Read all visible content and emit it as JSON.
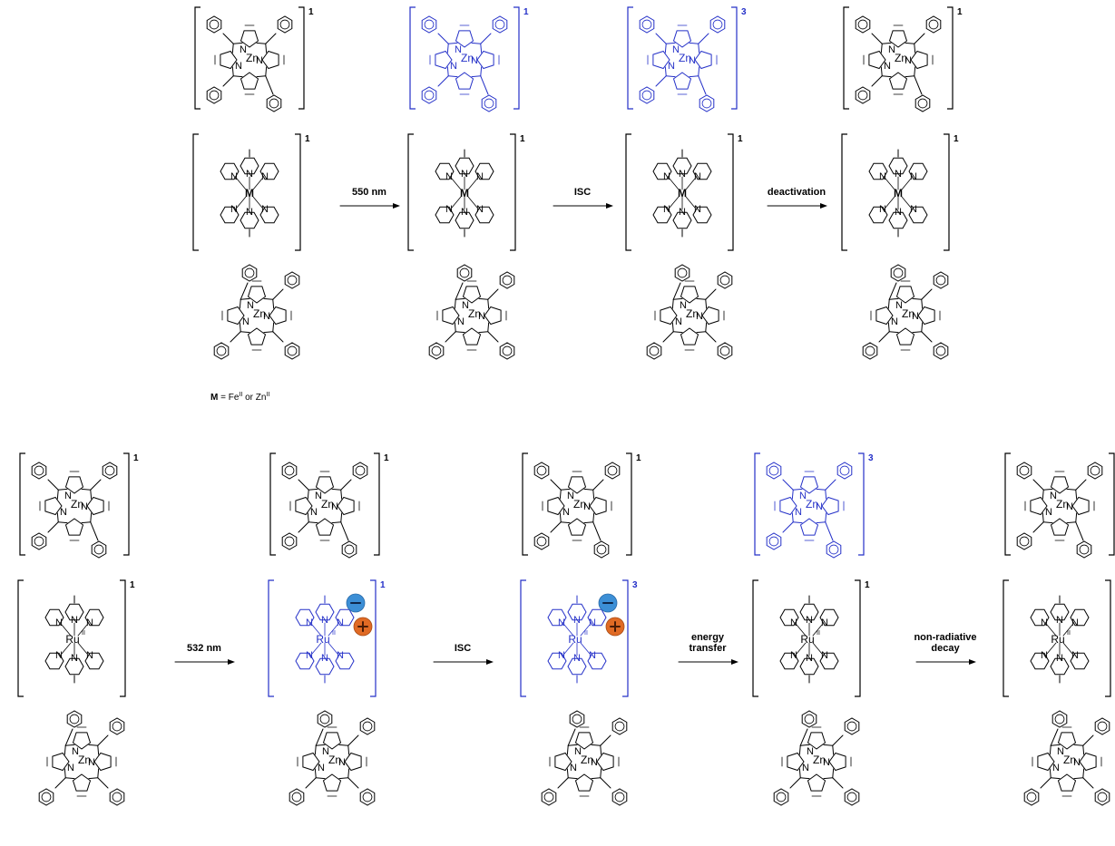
{
  "colors": {
    "ground": "#000000",
    "excited": "#2430c8",
    "minus": "#3c8fd6",
    "plus": "#e06a24"
  },
  "atoms": {
    "n": "N",
    "zn": "Zn",
    "m": "M",
    "ru": "Ru",
    "ru_ox": "II"
  },
  "note": {
    "m_symbol": "M",
    "text": " = Fe",
    "ox1": "II",
    "or": " or Zn",
    "ox2": "II"
  },
  "rows": [
    {
      "stages": [
        {
          "top": "ground",
          "top_mult": "1",
          "bot": "ground",
          "bot_mult": "1",
          "metal": "M",
          "charges": false
        },
        {
          "top": "excited",
          "top_mult": "1",
          "bot": "ground",
          "bot_mult": "1",
          "metal": "M",
          "charges": false
        },
        {
          "top": "excited",
          "top_mult": "3",
          "bot": "ground",
          "bot_mult": "1",
          "metal": "M",
          "charges": false
        },
        {
          "top": "ground",
          "top_mult": "1",
          "bot": "ground",
          "bot_mult": "1",
          "metal": "M",
          "charges": false
        }
      ],
      "arrows": [
        {
          "label": [
            "550 nm"
          ]
        },
        {
          "label": [
            "ISC"
          ]
        },
        {
          "label": [
            "deactivation"
          ]
        }
      ]
    },
    {
      "stages": [
        {
          "top": "ground",
          "top_mult": "1",
          "bot": "ground",
          "bot_mult": "1",
          "metal": "Ru",
          "charges": false
        },
        {
          "top": "ground",
          "top_mult": "1",
          "bot": "excited",
          "bot_mult": "1",
          "metal": "Ru",
          "charges": true
        },
        {
          "top": "ground",
          "top_mult": "1",
          "bot": "excited",
          "bot_mult": "3",
          "metal": "Ru",
          "charges": true
        },
        {
          "top": "excited",
          "top_mult": "3",
          "bot": "ground",
          "bot_mult": "1",
          "metal": "Ru",
          "charges": false
        },
        {
          "top": "ground",
          "top_mult": "1",
          "bot": "ground",
          "bot_mult": "1",
          "metal": "Ru",
          "charges": false
        }
      ],
      "arrows": [
        {
          "label": [
            "532 nm"
          ]
        },
        {
          "label": [
            "ISC"
          ]
        },
        {
          "label": [
            "energy",
            "transfer"
          ]
        },
        {
          "label": [
            "non-radiative",
            "decay"
          ]
        }
      ]
    }
  ]
}
